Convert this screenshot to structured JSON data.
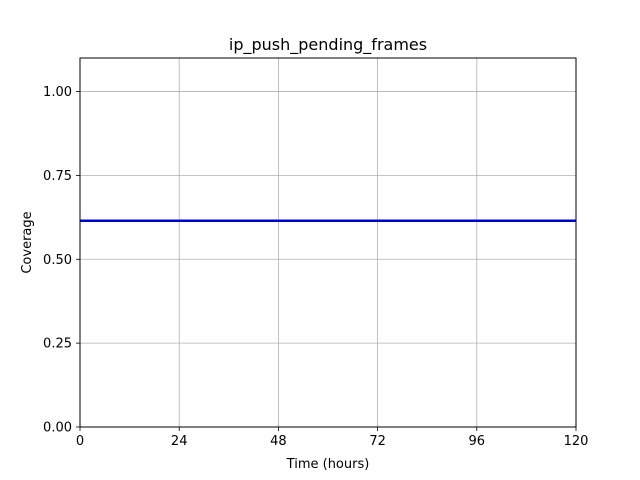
{
  "chart_data": {
    "type": "line",
    "title": "ip_push_pending_frames",
    "xlabel": "Time (hours)",
    "ylabel": "Coverage",
    "xlim": [
      0,
      120
    ],
    "ylim": [
      0,
      1.1
    ],
    "xticks": [
      0,
      24,
      48,
      72,
      96,
      120
    ],
    "xtick_labels": [
      "0",
      "24",
      "48",
      "72",
      "96",
      "120"
    ],
    "yticks": [
      0,
      0.25,
      0.5,
      0.75,
      1.0
    ],
    "ytick_labels": [
      "0.00",
      "0.25",
      "0.50",
      "0.75",
      "1.00"
    ],
    "grid": true,
    "series": [
      {
        "color": "#0000cc",
        "x": [
          0,
          120
        ],
        "y": [
          0.615,
          0.615
        ]
      }
    ]
  }
}
